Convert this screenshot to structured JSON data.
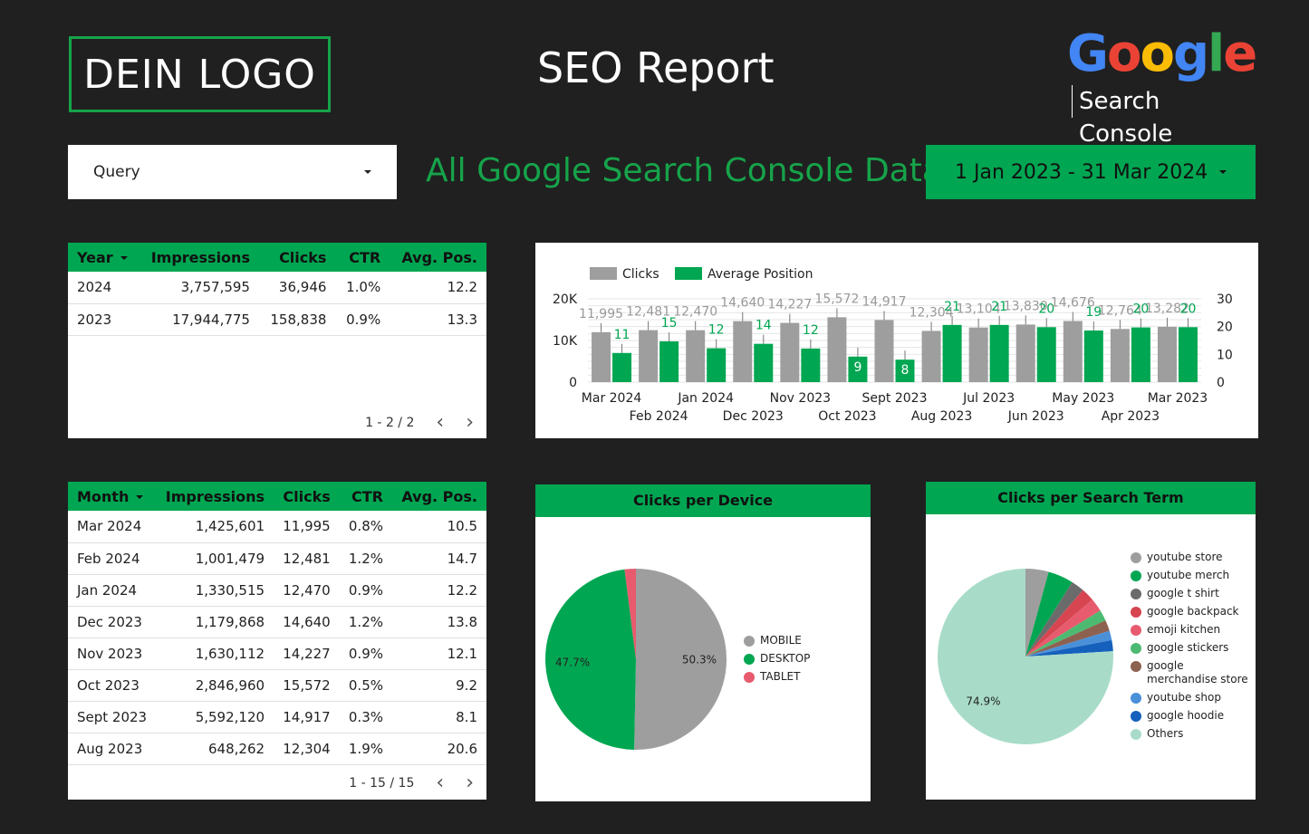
{
  "header": {
    "logo_text": "DEIN LOGO",
    "title": "SEO Report",
    "gsc_letters": [
      "G",
      "o",
      "o",
      "g",
      "l",
      "e"
    ],
    "gsc_colors": [
      "#4285F4",
      "#EA4335",
      "#FBBC05",
      "#4285F4",
      "#34A853",
      "#EA4335"
    ],
    "gsc_subtitle": "Search Console"
  },
  "controls": {
    "query_label": "Query",
    "subtitle": "All Google Search Console Data",
    "date_range": "1 Jan 2023 - 31 Mar 2024"
  },
  "year_table": {
    "headers": [
      "Year",
      "Impressions",
      "Clicks",
      "CTR",
      "Avg. Pos."
    ],
    "rows": [
      [
        "2024",
        "3,757,595",
        "36,946",
        "1.0%",
        "12.2"
      ],
      [
        "2023",
        "17,944,775",
        "158,838",
        "0.9%",
        "13.3"
      ]
    ],
    "pager": "1 - 2 / 2"
  },
  "month_table": {
    "headers": [
      "Month",
      "Impressions",
      "Clicks",
      "CTR",
      "Avg. Pos."
    ],
    "rows": [
      [
        "Mar 2024",
        "1,425,601",
        "11,995",
        "0.8%",
        "10.5"
      ],
      [
        "Feb 2024",
        "1,001,479",
        "12,481",
        "1.2%",
        "14.7"
      ],
      [
        "Jan 2024",
        "1,330,515",
        "12,470",
        "0.9%",
        "12.2"
      ],
      [
        "Dec 2023",
        "1,179,868",
        "14,640",
        "1.2%",
        "13.8"
      ],
      [
        "Nov 2023",
        "1,630,112",
        "14,227",
        "0.9%",
        "12.1"
      ],
      [
        "Oct 2023",
        "2,846,960",
        "15,572",
        "0.5%",
        "9.2"
      ],
      [
        "Sept 2023",
        "5,592,120",
        "14,917",
        "0.3%",
        "8.1"
      ],
      [
        "Aug 2023",
        "648,262",
        "12,304",
        "1.9%",
        "20.6"
      ]
    ],
    "pager": "1 - 15 / 15"
  },
  "chart_data": [
    {
      "type": "bar",
      "legend": [
        "Clicks",
        "Average Position"
      ],
      "categories": [
        "Mar 2024",
        "Feb 2024",
        "Jan 2024",
        "Dec 2023",
        "Nov 2023",
        "Oct 2023",
        "Sept 2023",
        "Aug 2023",
        "Jul 2023",
        "Jun 2023",
        "May 2023",
        "Apr 2023",
        "Mar 2023"
      ],
      "series": [
        {
          "name": "Clicks",
          "axis": "left",
          "color": "#9e9e9e",
          "values": [
            11995,
            12481,
            12470,
            14640,
            14227,
            15572,
            14917,
            12304,
            13104,
            13830,
            14676,
            12764,
            13282
          ],
          "labels": [
            "11,995",
            "12,481",
            "12,470",
            "14,640",
            "14,227",
            "15,572",
            "14,917",
            "12,304",
            "13,104",
            "13,830",
            "14,676",
            "12,764",
            "13,282"
          ]
        },
        {
          "name": "Average Position",
          "axis": "right",
          "color": "#00a651",
          "values": [
            10.5,
            14.7,
            12.2,
            13.8,
            12.1,
            9.2,
            8.1,
            20.6,
            20.6,
            19.8,
            18.6,
            19.7,
            19.8
          ],
          "labels": [
            "11",
            "15",
            "12",
            "14",
            "12",
            "9",
            "8",
            "21",
            "21",
            "20",
            "19",
            "20",
            "20"
          ]
        }
      ],
      "y_left": {
        "ticks": [
          "0",
          "10K",
          "20K"
        ],
        "range": [
          0,
          20000
        ]
      },
      "y_right": {
        "ticks": [
          "0",
          "10",
          "20",
          "30"
        ],
        "range": [
          0,
          30
        ]
      }
    },
    {
      "type": "pie",
      "title": "Clicks per Device",
      "labels": [
        "MOBILE",
        "DESKTOP",
        "TABLET"
      ],
      "values": [
        50.3,
        47.7,
        2.0
      ],
      "colors": [
        "#9e9e9e",
        "#00a651",
        "#e85a6e"
      ],
      "slice_labels": [
        "50.3%",
        "47.7%",
        ""
      ]
    },
    {
      "type": "pie",
      "title": "Clicks per Search Term",
      "labels": [
        "youtube store",
        "youtube merch",
        "google t shirt",
        "google backpack",
        "emoji kitchen",
        "google stickers",
        "google merchandise store",
        "youtube shop",
        "google hoodie",
        "Others"
      ],
      "values": [
        4.2,
        4.6,
        2.4,
        2.4,
        2.4,
        2.0,
        2.0,
        1.7,
        2.0,
        74.9
      ],
      "colors": [
        "#9e9e9e",
        "#00a651",
        "#6b6b6b",
        "#d64550",
        "#e85a6e",
        "#4cba70",
        "#8d6150",
        "#4a90d9",
        "#1560bd",
        "#a8dcc9"
      ],
      "slice_labels": [
        "",
        "",
        "",
        "",
        "",
        "",
        "",
        "",
        "",
        "74.9%"
      ]
    }
  ]
}
